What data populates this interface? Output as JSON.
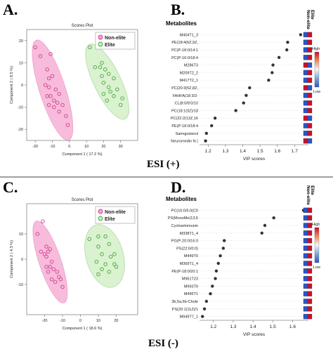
{
  "panels": {
    "A": "A.",
    "B": "B.",
    "C": "C.",
    "D": "D."
  },
  "esi_labels": {
    "top": "ESI (+)",
    "bottom": "ESI (-)"
  },
  "colors": {
    "non_elite_fill": "#f4a6cf",
    "non_elite_point": "#d33c8c",
    "elite_fill": "#cdeec0",
    "elite_point": "#44a63a",
    "heat_high": "#c8102e",
    "heat_low": "#2b55c5"
  },
  "chart_data": [
    {
      "id": "A",
      "type": "scatter",
      "title": "Scores Plot",
      "xlabel": "Component 1 ( 17.2 %)",
      "ylabel": "Component 2 ( 8.5 %)",
      "xlim": [
        -25,
        40
      ],
      "ylim": [
        -25,
        25
      ],
      "xticks": [
        -20,
        -10,
        0,
        10,
        20,
        30
      ],
      "yticks": [
        -20,
        -10,
        0,
        10,
        20
      ],
      "legend": {
        "position": "top-right",
        "entries": [
          "Non-elite",
          "Elite"
        ]
      },
      "series": [
        {
          "name": "Non-elite",
          "points": [
            [
              -20,
              17
            ],
            [
              -17,
              13
            ],
            [
              -11,
              14
            ],
            [
              -13,
              7
            ],
            [
              -12,
              3
            ],
            [
              -10,
              4
            ],
            [
              -14,
              0
            ],
            [
              -12,
              -1
            ],
            [
              -8,
              -2
            ],
            [
              -6,
              -4
            ],
            [
              -11,
              -5
            ],
            [
              -9,
              -7
            ],
            [
              -7,
              -8
            ],
            [
              -4,
              -9
            ],
            [
              -12,
              -9
            ],
            [
              -9,
              -10
            ],
            [
              -6,
              -12
            ],
            [
              -2,
              -14
            ],
            [
              -1,
              -18
            ],
            [
              -13,
              -5
            ]
          ]
        },
        {
          "name": "Elite",
          "points": [
            [
              12,
              17
            ],
            [
              19,
              10
            ],
            [
              15,
              8
            ],
            [
              18,
              8
            ],
            [
              21,
              7
            ],
            [
              23,
              5
            ],
            [
              19,
              4
            ],
            [
              26,
              3
            ],
            [
              20,
              1
            ],
            [
              23,
              -1
            ],
            [
              28,
              -2
            ],
            [
              20,
              -4
            ],
            [
              26,
              -5
            ],
            [
              31,
              -6
            ],
            [
              22,
              -7
            ],
            [
              24,
              -3
            ],
            [
              30,
              -9
            ]
          ]
        }
      ]
    },
    {
      "id": "B",
      "type": "scatter",
      "title": "Metabolites",
      "xlabel": "VIP scores",
      "xlim": [
        1.15,
        1.78
      ],
      "xticks": [
        1.2,
        1.3,
        1.4,
        1.5,
        1.6,
        1.7
      ],
      "columns": [
        "Non-elite",
        "Elite"
      ],
      "heat_legend": {
        "high": "High",
        "low": "Low"
      },
      "rows": [
        {
          "label": "M404T1_3",
          "vip": 1.735,
          "heat": [
            "blue",
            "red"
          ]
        },
        {
          "label": "PE(18:4(6Z,9Z,",
          "vip": 1.66,
          "heat": [
            "blue",
            "red"
          ]
        },
        {
          "label": "PC(P-18:0/14:1",
          "vip": 1.655,
          "heat": [
            "blue",
            "red"
          ]
        },
        {
          "label": "PC(P-16:0/18:4",
          "vip": 1.61,
          "heat": [
            "blue",
            "red"
          ]
        },
        {
          "label": "M286T3",
          "vip": 1.575,
          "heat": [
            "red",
            "blue"
          ]
        },
        {
          "label": "M209T2_2",
          "vip": 1.57,
          "heat": [
            "blue",
            "red"
          ]
        },
        {
          "label": "M417T2_1",
          "vip": 1.55,
          "heat": [
            "blue",
            "red"
          ]
        },
        {
          "label": "PC(20:3(5Z,8Z,",
          "vip": 1.44,
          "heat": [
            "red",
            "blue"
          ]
        },
        {
          "label": "FAHFA(18:3/2-",
          "vip": 1.42,
          "heat": [
            "blue",
            "red"
          ]
        },
        {
          "label": "CL(8:0/8:0/10",
          "vip": 1.405,
          "heat": [
            "blue",
            "red"
          ]
        },
        {
          "label": "PC(18:1(9Z)/18",
          "vip": 1.36,
          "heat": [
            "blue",
            "red"
          ]
        },
        {
          "label": "PC(22:2(13Z,16",
          "vip": 1.24,
          "heat": [
            "red",
            "blue"
          ]
        },
        {
          "label": "PE(P-18:0/18:4",
          "vip": 1.22,
          "heat": [
            "blue",
            "red"
          ]
        },
        {
          "label": "Saringosterol",
          "vip": 1.19,
          "heat": [
            "blue",
            "red"
          ]
        },
        {
          "label": "Neuromedin N (",
          "vip": 1.185,
          "heat": [
            "red",
            "blue"
          ]
        }
      ]
    },
    {
      "id": "C",
      "type": "scatter",
      "title": "Scores Plot",
      "xlabel": "Component 1 ( 18.6 %)",
      "ylabel": "Component 2 ( 4.3 %)",
      "xlim": [
        -30,
        32
      ],
      "ylim": [
        -22,
        22
      ],
      "xticks": [
        -20,
        -10,
        0,
        10,
        20
      ],
      "yticks": [
        -10,
        0,
        10
      ],
      "legend": {
        "position": "top-right",
        "entries": [
          "Non-elite",
          "Elite"
        ]
      },
      "series": [
        {
          "name": "Non-elite",
          "points": [
            [
              -21,
              15
            ],
            [
              -24,
              10
            ],
            [
              -19,
              5
            ],
            [
              -17,
              4
            ],
            [
              -20,
              2
            ],
            [
              -18,
              3
            ],
            [
              -22,
              3
            ],
            [
              -19,
              1
            ],
            [
              -16,
              -1
            ],
            [
              -19,
              -3
            ],
            [
              -17,
              -3
            ],
            [
              -15,
              -4
            ],
            [
              -13,
              -5
            ],
            [
              -18,
              -5
            ],
            [
              -16,
              -8
            ],
            [
              -12,
              -7
            ],
            [
              -14,
              -9
            ],
            [
              -10,
              -11
            ],
            [
              -11,
              -8
            ]
          ]
        },
        {
          "name": "Elite",
          "points": [
            [
              5,
              8
            ],
            [
              10,
              9
            ],
            [
              14,
              9
            ],
            [
              10,
              5
            ],
            [
              16,
              6
            ],
            [
              12,
              2
            ],
            [
              19,
              2
            ],
            [
              17,
              1
            ],
            [
              9,
              -1
            ],
            [
              14,
              -2
            ],
            [
              12,
              -4
            ],
            [
              19,
              -2
            ],
            [
              20,
              -3
            ],
            [
              16,
              -5
            ],
            [
              10,
              -6
            ]
          ]
        }
      ]
    },
    {
      "id": "D",
      "type": "scatter",
      "title": "Metabolites",
      "xlabel": "VIP scores",
      "xlim": [
        1.13,
        1.68
      ],
      "xticks": [
        1.2,
        1.3,
        1.4,
        1.5,
        1.6
      ],
      "columns": [
        "Non-elite",
        "Elite"
      ],
      "heat_legend": {
        "high": "High",
        "low": "Low"
      },
      "rows": [
        {
          "label": "PC(16:0/5:0(C0",
          "vip": 1.655,
          "heat": [
            "blue",
            "red"
          ]
        },
        {
          "label": "PS(MonoMe(13,5",
          "vip": 1.505,
          "heat": [
            "blue",
            "red"
          ]
        },
        {
          "label": "Cycloartomunin",
          "vip": 1.46,
          "heat": [
            "blue",
            "red"
          ]
        },
        {
          "label": "M338T1_4",
          "vip": 1.445,
          "heat": [
            "blue",
            "red"
          ]
        },
        {
          "label": "PG(P-20:0/16:0",
          "vip": 1.255,
          "heat": [
            "blue",
            "red"
          ]
        },
        {
          "label": "PS(22:0/0:0)",
          "vip": 1.25,
          "heat": [
            "blue",
            "red"
          ]
        },
        {
          "label": "M449T0",
          "vip": 1.235,
          "heat": [
            "blue",
            "red"
          ]
        },
        {
          "label": "M369T1_4",
          "vip": 1.225,
          "heat": [
            "blue",
            "red"
          ]
        },
        {
          "label": "PE(P-18:0/20:1",
          "vip": 1.215,
          "heat": [
            "blue",
            "red"
          ]
        },
        {
          "label": "M961T23",
          "vip": 1.21,
          "heat": [
            "blue",
            "red"
          ]
        },
        {
          "label": "M993T9",
          "vip": 1.195,
          "heat": [
            "blue",
            "red"
          ]
        },
        {
          "label": "M495T1",
          "vip": 1.185,
          "heat": [
            "blue",
            "red"
          ]
        },
        {
          "label": "3b,5a,6b-Chole",
          "vip": 1.165,
          "heat": [
            "blue",
            "red"
          ]
        },
        {
          "label": "PS(20:1(11Z)/1",
          "vip": 1.155,
          "heat": [
            "blue",
            "red"
          ]
        },
        {
          "label": "M949T7_1",
          "vip": 1.145,
          "heat": [
            "blue",
            "red"
          ]
        }
      ]
    }
  ]
}
